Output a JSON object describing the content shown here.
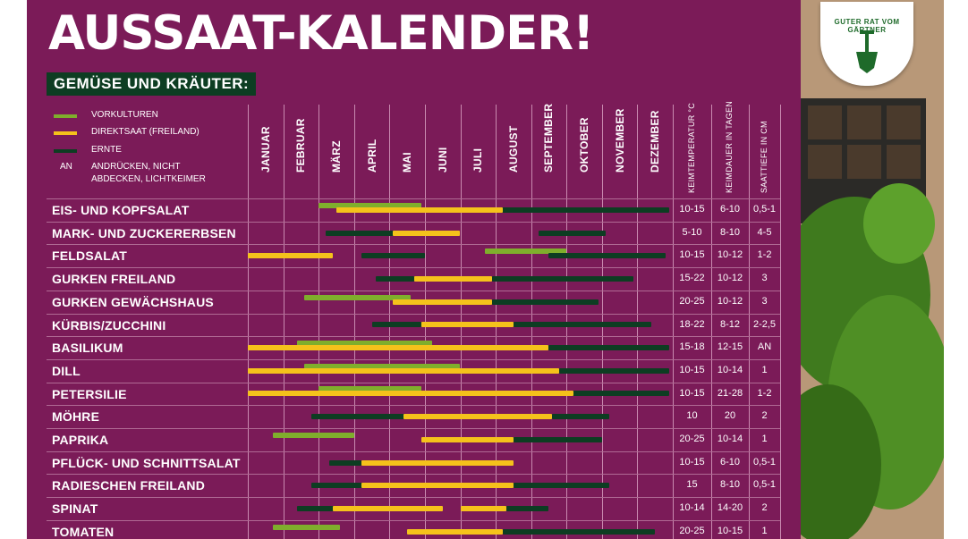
{
  "title": "AUSSAAT-KALENDER!",
  "subtitle": "GEMÜSE UND KRÄUTER:",
  "legend": {
    "vorkulturen": "VORKULTUREN",
    "direktsaat": "DIREKTSAAT (FREILAND)",
    "ernte": "ERNTE",
    "an_code": "AN",
    "an_text_1": "ANDRÜCKEN, NICHT",
    "an_text_2": "ABDECKEN, LICHTKEIMER"
  },
  "colors": {
    "background": "#7b1b58",
    "vorkultur": "#7fae2c",
    "direktsaat": "#f5c21b",
    "ernte": "#0d3d22"
  },
  "months": [
    "JANUAR",
    "FEBRUAR",
    "MÄRZ",
    "APRIL",
    "MAI",
    "JUNI",
    "JULI",
    "AUGUST",
    "SEPTEMBER",
    "OKTOBER",
    "NOVEMBER",
    "DEZEMBER"
  ],
  "stat_headers": [
    "KEIMTEMPERATUR °C",
    "KEIMDAUER IN TAGEN",
    "SAATTIEFE IN CM"
  ],
  "badge": {
    "text": "GUTER RAT VOM GÄRTNER",
    "icon": "spade-icon"
  },
  "plants": [
    {
      "name": "EIS- UND KOPFSALAT",
      "temp": "10-15",
      "days": "6-10",
      "depth": "0,5-1",
      "pre": [
        [
          2.0,
          4.9
        ]
      ],
      "sow": [
        [
          2.5,
          7.2
        ]
      ],
      "har": [
        [
          7.1,
          11.9
        ]
      ]
    },
    {
      "name": "MARK- UND ZUCKERERBSEN",
      "temp": "5-10",
      "days": "8-10",
      "depth": "4-5",
      "pre": [],
      "sow": [
        [
          4.1,
          6.0
        ]
      ],
      "har": [
        [
          2.2,
          4.2
        ],
        [
          8.2,
          10.1
        ]
      ]
    },
    {
      "name": "FELDSALAT",
      "temp": "10-15",
      "days": "10-12",
      "depth": "1-2",
      "pre": [
        [
          6.7,
          9.0
        ]
      ],
      "sow": [
        [
          0.0,
          2.4
        ]
      ],
      "har": [
        [
          3.2,
          5.0
        ],
        [
          8.5,
          11.8
        ]
      ]
    },
    {
      "name": "GURKEN FREILAND",
      "temp": "15-22",
      "days": "10-12",
      "depth": "3",
      "pre": [],
      "sow": [
        [
          4.7,
          6.9
        ]
      ],
      "har": [
        [
          3.6,
          4.7
        ],
        [
          6.9,
          10.9
        ]
      ]
    },
    {
      "name": "GURKEN GEWÄCHSHAUS",
      "temp": "20-25",
      "days": "10-12",
      "depth": "3",
      "pre": [
        [
          1.6,
          4.6
        ]
      ],
      "sow": [
        [
          4.1,
          6.9
        ]
      ],
      "har": [
        [
          6.9,
          9.9
        ]
      ]
    },
    {
      "name": "KÜRBIS/ZUCCHINI",
      "temp": "18-22",
      "days": "8-12",
      "depth": "2-2,5",
      "pre": [],
      "sow": [
        [
          4.9,
          7.5
        ]
      ],
      "har": [
        [
          3.5,
          4.9
        ],
        [
          7.5,
          11.4
        ]
      ]
    },
    {
      "name": "BASILIKUM",
      "temp": "15-18",
      "days": "12-15",
      "depth": "AN",
      "pre": [
        [
          1.4,
          5.2
        ]
      ],
      "sow": [
        [
          0.0,
          8.5
        ]
      ],
      "har": [
        [
          8.5,
          11.9
        ]
      ]
    },
    {
      "name": "DILL",
      "temp": "10-15",
      "days": "10-14",
      "depth": "1",
      "pre": [
        [
          1.6,
          6.0
        ]
      ],
      "sow": [
        [
          0.0,
          8.8
        ]
      ],
      "har": [
        [
          8.8,
          11.9
        ]
      ]
    },
    {
      "name": "PETERSILIE",
      "temp": "10-15",
      "days": "21-28",
      "depth": "1-2",
      "pre": [
        [
          2.0,
          4.9
        ]
      ],
      "sow": [
        [
          0.0,
          9.2
        ]
      ],
      "har": [
        [
          2.1,
          4.8
        ],
        [
          9.0,
          11.9
        ]
      ]
    },
    {
      "name": "MÖHRE",
      "temp": "10",
      "days": "20",
      "depth": "2",
      "pre": [],
      "sow": [
        [
          4.4,
          8.6
        ]
      ],
      "har": [
        [
          1.8,
          5.3
        ],
        [
          8.6,
          10.2
        ]
      ]
    },
    {
      "name": "PAPRIKA",
      "temp": "20-25",
      "days": "10-14",
      "depth": "1",
      "pre": [
        [
          0.7,
          3.0
        ]
      ],
      "sow": [
        [
          4.9,
          7.5
        ]
      ],
      "har": [
        [
          7.5,
          10.0
        ]
      ]
    },
    {
      "name": "PFLÜCK- UND SCHNITTSALAT",
      "temp": "10-15",
      "days": "6-10",
      "depth": "0,5-1",
      "pre": [],
      "sow": [
        [
          3.2,
          7.5
        ]
      ],
      "har": [
        [
          2.3,
          3.2
        ]
      ]
    },
    {
      "name": "RADIESCHEN FREILAND",
      "temp": "15",
      "days": "8-10",
      "depth": "0,5-1",
      "pre": [],
      "sow": [
        [
          3.2,
          7.5
        ]
      ],
      "har": [
        [
          1.8,
          5.6
        ],
        [
          7.5,
          10.2
        ]
      ]
    },
    {
      "name": "SPINAT",
      "temp": "10-14",
      "days": "14-20",
      "depth": "2",
      "pre": [],
      "sow": [
        [
          2.4,
          5.5
        ],
        [
          6.0,
          7.3
        ]
      ],
      "har": [
        [
          1.4,
          3.8
        ],
        [
          7.3,
          8.5
        ]
      ]
    },
    {
      "name": "TOMATEN",
      "temp": "20-25",
      "days": "10-15",
      "depth": "1",
      "pre": [
        [
          0.7,
          2.6
        ]
      ],
      "sow": [
        [
          4.5,
          7.2
        ]
      ],
      "har": [
        [
          7.2,
          11.5
        ]
      ]
    }
  ]
}
